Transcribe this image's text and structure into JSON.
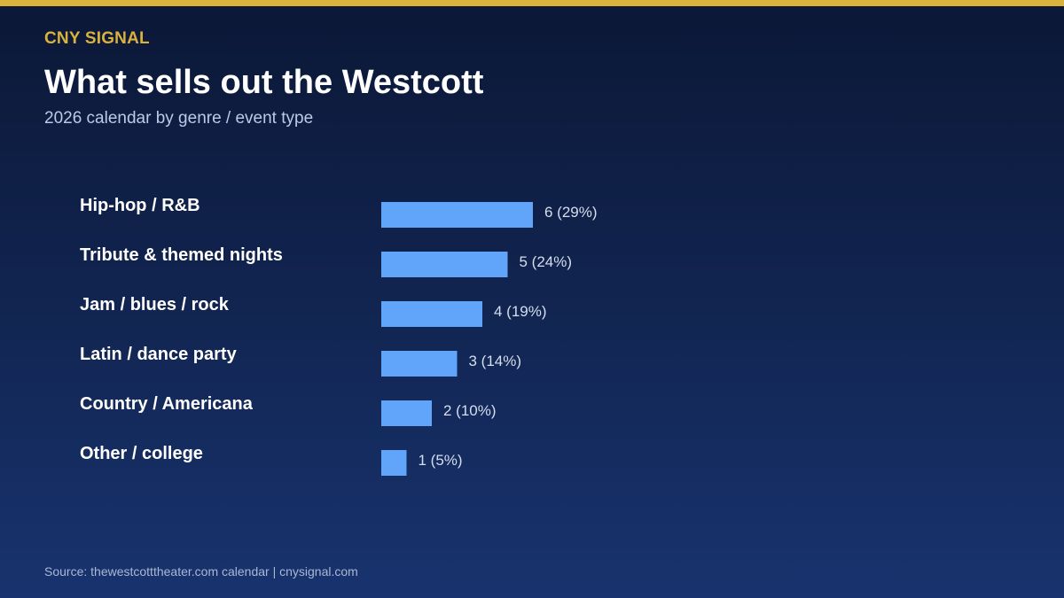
{
  "brand": "CNY SIGNAL",
  "title": "What sells out the Westcott",
  "subtitle": "2026 calendar by genre / event type",
  "source": "Source: thewestcotttheater.com calendar | cnysignal.com",
  "colors": {
    "accent": "#d9b23c",
    "bar": "#60a5fa",
    "category_text": "#ffffff",
    "value_text": "#d6deee"
  },
  "chart_data": {
    "type": "bar",
    "orientation": "horizontal",
    "categories": [
      "Hip-hop / R&B",
      "Tribute & themed nights",
      "Jam / blues / rock",
      "Latin / dance party",
      "Country / Americana",
      "Other / college"
    ],
    "values": [
      6,
      5,
      4,
      3,
      2,
      1
    ],
    "value_labels": [
      "6 (29%)",
      "5 (24%)",
      "4 (19%)",
      "3 (14%)",
      "2 (10%)",
      "1 (5%)"
    ],
    "xlim": [
      0,
      21
    ],
    "grid": false,
    "legend": false
  }
}
